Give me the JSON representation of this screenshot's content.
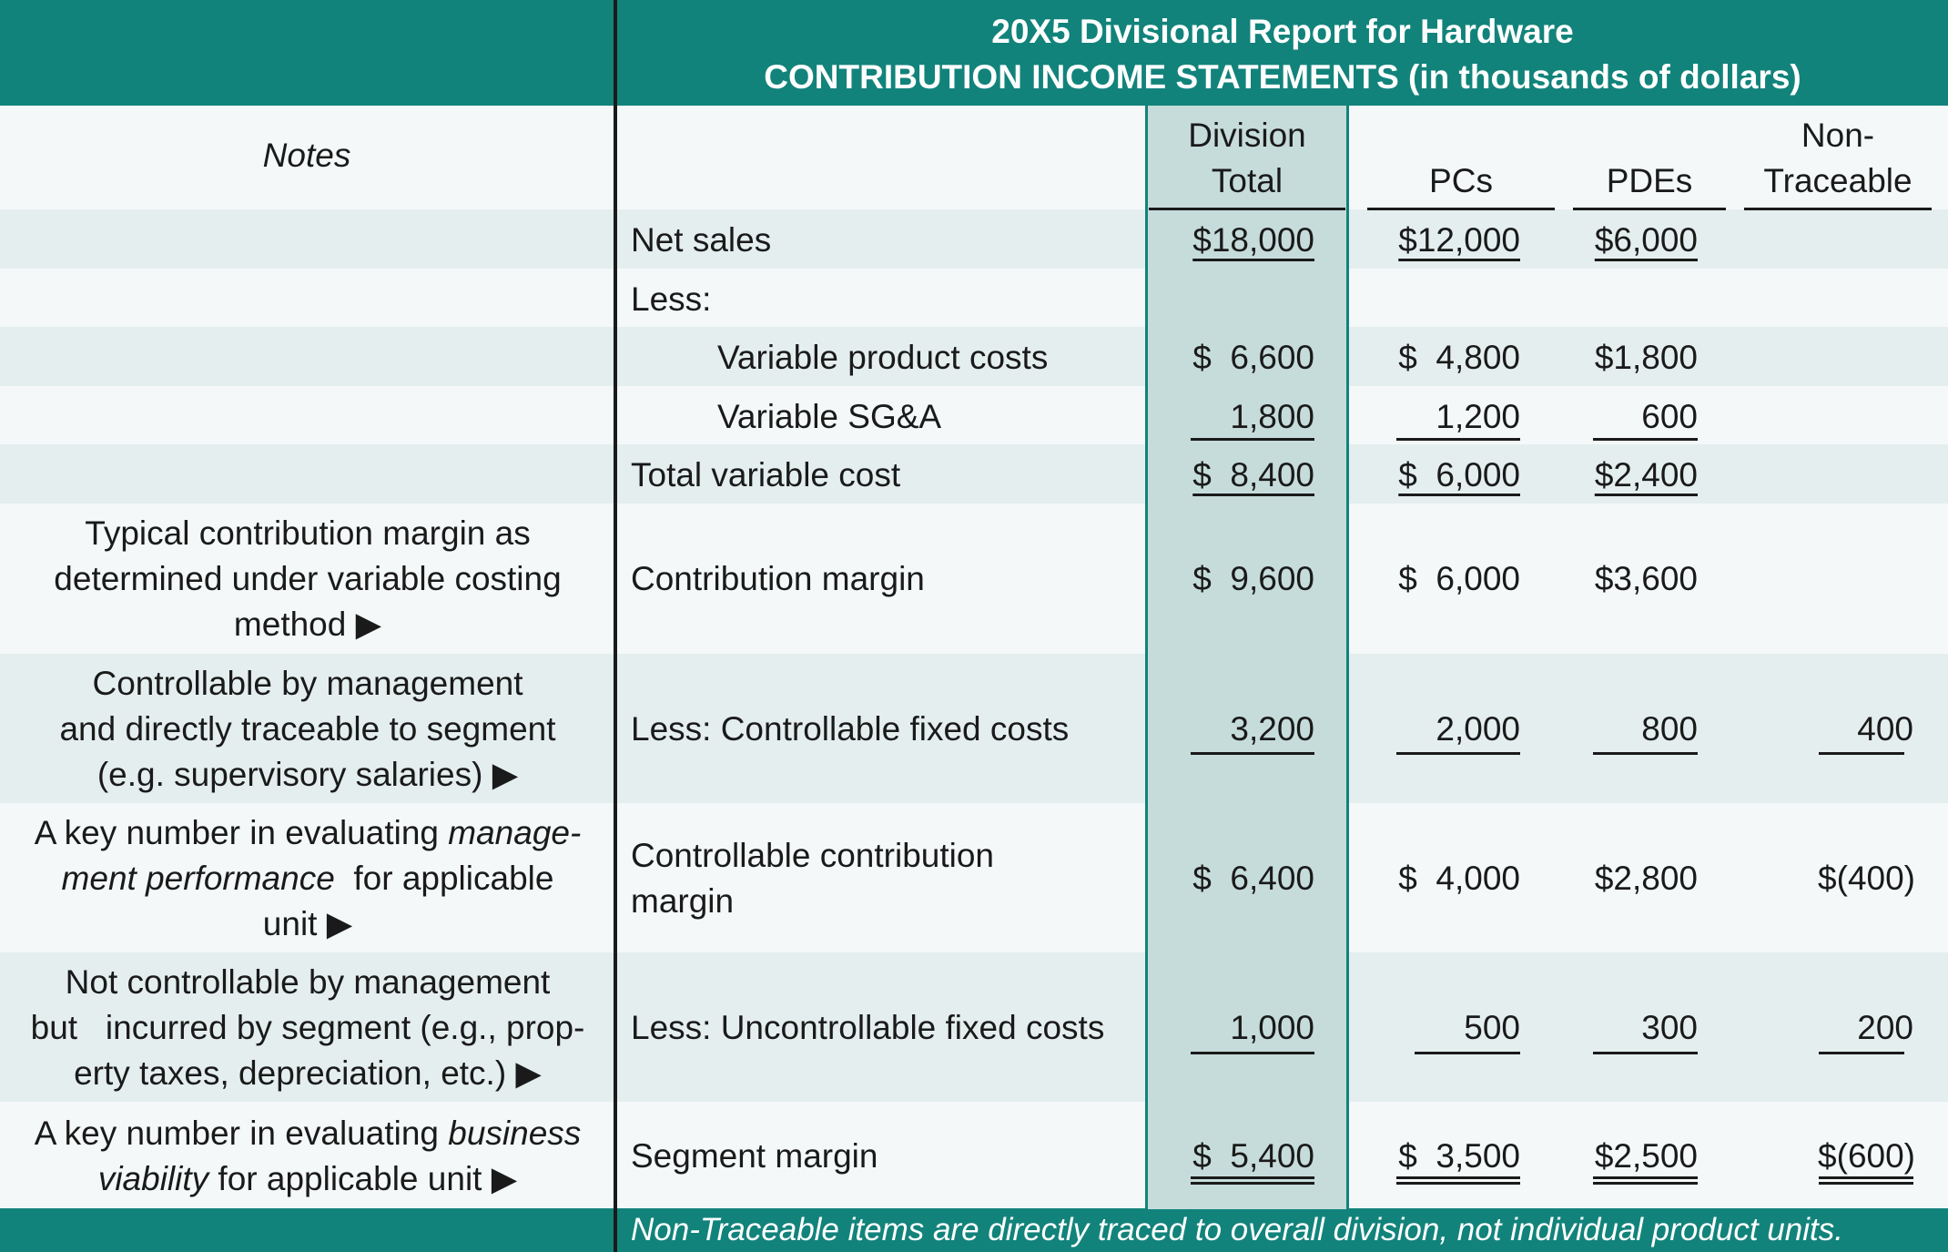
{
  "title": {
    "line1": "20X5 Divisional Report for Hardware",
    "line2": "CONTRIBUTION INCOME STATEMENTS (in thousands of dollars)"
  },
  "headers": {
    "notes": "Notes",
    "division_line1": "Division",
    "division_line2": "Total",
    "pcs": "PCs",
    "pdes": "PDEs",
    "nontrace_line1": "Non-",
    "nontrace_line2": "Traceable"
  },
  "rows": {
    "net_sales": {
      "label": "Net sales",
      "total": "$18,000",
      "pcs": "$12,000",
      "pdes": "$6,000"
    },
    "less": {
      "label": "Less:"
    },
    "var_product": {
      "label": "Variable product costs",
      "total": "$  6,600",
      "pcs": "$  4,800",
      "pdes": "$1,800"
    },
    "var_sga": {
      "label": "Variable SG&A",
      "total": "1,800",
      "pcs": "1,200",
      "pdes": "600"
    },
    "total_var": {
      "label": "Total variable cost",
      "total": "$  8,400",
      "pcs": "$  6,000",
      "pdes": "$2,400"
    },
    "contrib": {
      "label": "Contribution margin",
      "total": "$  9,600",
      "pcs": "$  6,000",
      "pdes": "$3,600",
      "note": [
        "Typical contribution margin as",
        "determined under variable costing",
        "method ▶"
      ]
    },
    "ctrl_fixed": {
      "label": "Less: Controllable fixed costs",
      "total": "3,200",
      "pcs": "2,000",
      "pdes": "800",
      "nontrace": "400",
      "note": [
        "Controllable by management",
        "and  directly traceable to segment",
        "(e.g. supervisory salaries) ▶"
      ]
    },
    "ctrl_contrib": {
      "label_line1": "Controllable contribution",
      "label_line2": "margin",
      "total": "$  6,400",
      "pcs": "$  4,000",
      "pdes": "$2,800",
      "nontrace": "$(400)",
      "note_line1_plain": "A key number in evaluating ",
      "note_line1_italic": "manage-",
      "note_line2_italic": "ment performance",
      "note_line2_plain": "  for applicable",
      "note_line3": "unit ▶"
    },
    "unctrl_fixed": {
      "label": "Less: Uncontrollable fixed costs",
      "total": "1,000",
      "pcs": "500",
      "pdes": "300",
      "nontrace": "200",
      "note": [
        "Not controllable by management",
        "but   incurred by segment (e.g., prop-",
        "erty taxes, depreciation, etc.) ▶"
      ]
    },
    "segment": {
      "label": "Segment margin",
      "total": "$  5,400",
      "pcs": "$  3,500",
      "pdes": "$2,500",
      "nontrace": "$(600)",
      "note_line1_plain": "A key number in evaluating ",
      "note_line1_italic": "business",
      "note_line2_italic": "viability",
      "note_line2_plain": " for applicable unit ▶"
    }
  },
  "footnote": "Non-Traceable items are directly traced to overall division, not individual product units.",
  "colors": {
    "teal": "#12837b",
    "division_fill": "#c6dcdb",
    "alt_row": "#e4eeee"
  }
}
